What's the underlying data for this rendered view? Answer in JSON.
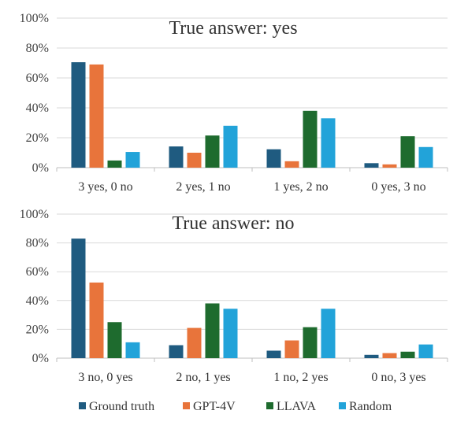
{
  "chart_data": [
    {
      "type": "bar",
      "title": "True answer:  yes",
      "categories": [
        "3 yes, 0 no",
        "2 yes, 1 no",
        "1 yes, 2 no",
        "0 yes, 3 no"
      ],
      "ylim": [
        0,
        100
      ],
      "yticks": [
        "0%",
        "20%",
        "40%",
        "60%",
        "80%",
        "100%"
      ],
      "grid": true,
      "series": [
        {
          "name": "Ground truth",
          "color": "#1f5b80",
          "values": [
            70.5,
            14.2,
            12.3,
            3.0
          ]
        },
        {
          "name": "GPT-4V",
          "color": "#e8743b",
          "values": [
            69.0,
            10.0,
            4.3,
            2.2
          ]
        },
        {
          "name": "LLAVA",
          "color": "#1e6b2e",
          "values": [
            4.8,
            21.5,
            38.0,
            21.0
          ]
        },
        {
          "name": "Random",
          "color": "#22a3d9",
          "values": [
            10.5,
            28.0,
            33.0,
            13.8
          ]
        }
      ]
    },
    {
      "type": "bar",
      "title": "True answer:  no",
      "categories": [
        "3 no, 0 yes",
        "2 no, 1 yes",
        "1 no, 2 yes",
        "0 no, 3 yes"
      ],
      "ylim": [
        0,
        100
      ],
      "yticks": [
        "0%",
        "20%",
        "40%",
        "60%",
        "80%",
        "100%"
      ],
      "grid": true,
      "series": [
        {
          "name": "Ground truth",
          "color": "#1f5b80",
          "values": [
            83.0,
            9.0,
            5.2,
            2.3
          ]
        },
        {
          "name": "GPT-4V",
          "color": "#e8743b",
          "values": [
            52.5,
            21.0,
            12.3,
            3.5
          ]
        },
        {
          "name": "LLAVA",
          "color": "#1e6b2e",
          "values": [
            25.0,
            38.0,
            21.5,
            4.5
          ]
        },
        {
          "name": "Random",
          "color": "#22a3d9",
          "values": [
            11.0,
            34.3,
            34.3,
            9.5
          ]
        }
      ]
    }
  ],
  "legend": {
    "placement": "bottom",
    "items": [
      "Ground truth",
      "GPT-4V",
      "LLAVA",
      "Random"
    ]
  }
}
